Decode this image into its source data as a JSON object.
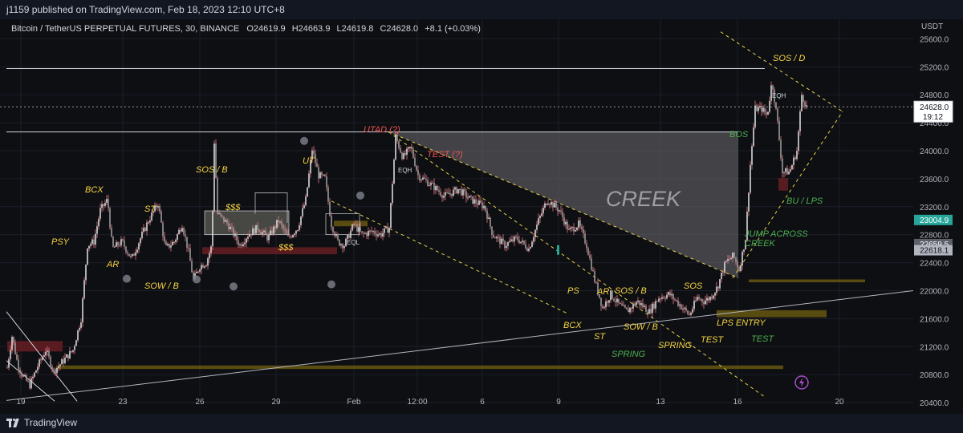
{
  "header": {
    "published": "j1159 published on TradingView.com, Feb 18, 2023 12:10 UTC+8"
  },
  "legend": {
    "symbol": "Bitcoin / TetherUS PERPETUAL FUTURES, 30, BINANCE",
    "o_label": "O",
    "o": "24619.9",
    "h_label": "H",
    "h": "24663.9",
    "l_label": "L",
    "l": "24619.8",
    "c_label": "C",
    "c": "24628.0",
    "change": "+8.1 (+0.03%)"
  },
  "footer": {
    "brand": "TradingView"
  },
  "colors": {
    "up": "#26a69a",
    "down": "#ef5350",
    "candle_body": "#c9c9c9",
    "wick": "#e07a85",
    "label_yellow": "#f5d442",
    "label_green": "#4caf50",
    "label_red": "#ef5350",
    "creek_fill": "#6e6e72",
    "zone": "#6b5b12"
  },
  "chart_data": {
    "type": "candlestick",
    "title": "Bitcoin / TetherUS PERPETUAL FUTURES, 30, BINANCE",
    "ylabel": "USDT",
    "ylim": [
      20240,
      25880
    ],
    "y_ticks": [
      "25600.0",
      "25200.0",
      "24800.0",
      "24400.0",
      "24000.0",
      "23600.0",
      "23200.0",
      "22800.0",
      "22400.0",
      "22000.0",
      "21600.0",
      "21200.0",
      "20800.0",
      "20400.0"
    ],
    "x_ticks": [
      "19",
      "23",
      "26",
      "29",
      "Feb",
      "12:00",
      "6",
      "9",
      "13",
      "16",
      "20"
    ],
    "price_badges": [
      {
        "value": "24628.0",
        "sub": "19:12",
        "kind": "current"
      },
      {
        "value": "23004.9",
        "kind": "green"
      },
      {
        "value": "22659.5",
        "kind": "grey"
      },
      {
        "value": "22618.1",
        "kind": "grey"
      }
    ],
    "series_path": [
      [
        0,
        20900
      ],
      [
        6,
        21350
      ],
      [
        13,
        20950
      ],
      [
        19,
        20780
      ],
      [
        28,
        20650
      ],
      [
        38,
        20920
      ],
      [
        48,
        21150
      ],
      [
        58,
        20850
      ],
      [
        70,
        21000
      ],
      [
        82,
        21150
      ],
      [
        92,
        21600
      ],
      [
        100,
        22650
      ],
      [
        108,
        22700
      ],
      [
        116,
        23150
      ],
      [
        125,
        23300
      ],
      [
        131,
        22600
      ],
      [
        143,
        22700
      ],
      [
        155,
        22450
      ],
      [
        166,
        22750
      ],
      [
        176,
        23000
      ],
      [
        188,
        23250
      ],
      [
        197,
        22600
      ],
      [
        208,
        22700
      ],
      [
        218,
        22950
      ],
      [
        226,
        22550
      ],
      [
        232,
        22150
      ],
      [
        240,
        22350
      ],
      [
        248,
        22400
      ],
      [
        255,
        22650
      ],
      [
        258,
        24130
      ],
      [
        262,
        23100
      ],
      [
        275,
        22950
      ],
      [
        290,
        22650
      ],
      [
        300,
        22800
      ],
      [
        312,
        22900
      ],
      [
        325,
        22750
      ],
      [
        338,
        23000
      ],
      [
        350,
        22750
      ],
      [
        362,
        22900
      ],
      [
        372,
        23300
      ],
      [
        380,
        24020
      ],
      [
        388,
        23650
      ],
      [
        396,
        23600
      ],
      [
        404,
        22950
      ],
      [
        412,
        22700
      ],
      [
        420,
        22650
      ],
      [
        432,
        22950
      ],
      [
        442,
        22800
      ],
      [
        455,
        22850
      ],
      [
        465,
        22800
      ],
      [
        476,
        22900
      ],
      [
        484,
        24200
      ],
      [
        493,
        23900
      ],
      [
        503,
        24050
      ],
      [
        512,
        23650
      ],
      [
        530,
        23500
      ],
      [
        545,
        23350
      ],
      [
        562,
        23450
      ],
      [
        578,
        23300
      ],
      [
        595,
        23200
      ],
      [
        605,
        22800
      ],
      [
        620,
        22650
      ],
      [
        635,
        22750
      ],
      [
        650,
        22600
      ],
      [
        662,
        23000
      ],
      [
        673,
        23300
      ],
      [
        688,
        23150
      ],
      [
        700,
        22850
      ],
      [
        712,
        22950
      ],
      [
        722,
        22650
      ],
      [
        732,
        22150
      ],
      [
        742,
        21750
      ],
      [
        752,
        21950
      ],
      [
        762,
        21800
      ],
      [
        772,
        21700
      ],
      [
        785,
        21850
      ],
      [
        800,
        21700
      ],
      [
        812,
        21900
      ],
      [
        825,
        21950
      ],
      [
        838,
        21800
      ],
      [
        850,
        21650
      ],
      [
        860,
        21900
      ],
      [
        868,
        21850
      ],
      [
        876,
        21900
      ],
      [
        885,
        22050
      ],
      [
        895,
        22400
      ],
      [
        905,
        22500
      ],
      [
        912,
        22300
      ],
      [
        920,
        22750
      ],
      [
        926,
        23800
      ],
      [
        932,
        24600
      ],
      [
        940,
        24600
      ],
      [
        947,
        24500
      ],
      [
        953,
        25000
      ],
      [
        960,
        24400
      ],
      [
        966,
        23700
      ],
      [
        975,
        23700
      ],
      [
        984,
        24000
      ],
      [
        990,
        24800
      ],
      [
        996,
        24628
      ]
    ],
    "horizontal_levels": [
      {
        "price": 25175,
        "label": "",
        "note": "range high"
      },
      {
        "price": 24628,
        "label": "",
        "note": "current price dotted"
      },
      {
        "price": 24270,
        "label": "",
        "note": "creek top / UTAD level"
      }
    ],
    "zones": [
      {
        "x": [
          1,
          70
        ],
        "y": [
          21130,
          21280
        ],
        "color": "red"
      },
      {
        "x": [
          244,
          412
        ],
        "y": [
          22520,
          22620
        ],
        "color": "red"
      },
      {
        "x": [
          62,
          968
        ],
        "y": [
          20880,
          20930
        ],
        "color": "olive"
      },
      {
        "x": [
          925,
          1070
        ],
        "y": [
          22120,
          22160
        ],
        "color": "olive"
      },
      {
        "x": [
          885,
          1022
        ],
        "y": [
          21620,
          21720
        ],
        "color": "olive"
      },
      {
        "x": [
          962,
          974
        ],
        "y": [
          23430,
          23610
        ],
        "color": "red"
      },
      {
        "x": [
          408,
          450
        ],
        "y": [
          22920,
          23000
        ],
        "color": "olive"
      }
    ],
    "annotations": [
      {
        "text": "PSY",
        "color": "yellow"
      },
      {
        "text": "BCX",
        "color": "yellow"
      },
      {
        "text": "AR",
        "color": "yellow"
      },
      {
        "text": "ST",
        "color": "yellow"
      },
      {
        "text": "SOW / B",
        "color": "yellow"
      },
      {
        "text": "SOS / B",
        "color": "yellow"
      },
      {
        "text": "$$$",
        "color": "yellow"
      },
      {
        "text": "$$$",
        "color": "yellow"
      },
      {
        "text": "UT",
        "color": "yellow"
      },
      {
        "text": "EQL",
        "color": "white"
      },
      {
        "text": "UTAD (?)",
        "color": "red"
      },
      {
        "text": "TEST (?)",
        "color": "red"
      },
      {
        "text": "EQH",
        "color": "white"
      },
      {
        "text": "CREEK",
        "color": "grey"
      },
      {
        "text": "PS",
        "color": "yellow"
      },
      {
        "text": "AR",
        "color": "yellow"
      },
      {
        "text": "SOS / B",
        "color": "yellow"
      },
      {
        "text": "BCX",
        "color": "yellow"
      },
      {
        "text": "SOW / B",
        "color": "yellow"
      },
      {
        "text": "ST",
        "color": "yellow"
      },
      {
        "text": "SPRING",
        "color": "yellow"
      },
      {
        "text": "SPRING",
        "color": "green"
      },
      {
        "text": "SOS",
        "color": "yellow"
      },
      {
        "text": "TEST",
        "color": "yellow"
      },
      {
        "text": "LPS ENTRY",
        "color": "yellow"
      },
      {
        "text": "TEST",
        "color": "green"
      },
      {
        "text": "JUMP ACROSS",
        "color": "green"
      },
      {
        "text": "CREEK",
        "color": "green"
      },
      {
        "text": "BOS",
        "color": "green"
      },
      {
        "text": "BU / LPS",
        "color": "green"
      },
      {
        "text": "SOS / D",
        "color": "yellow"
      },
      {
        "text": "EQH",
        "color": "white"
      }
    ]
  }
}
